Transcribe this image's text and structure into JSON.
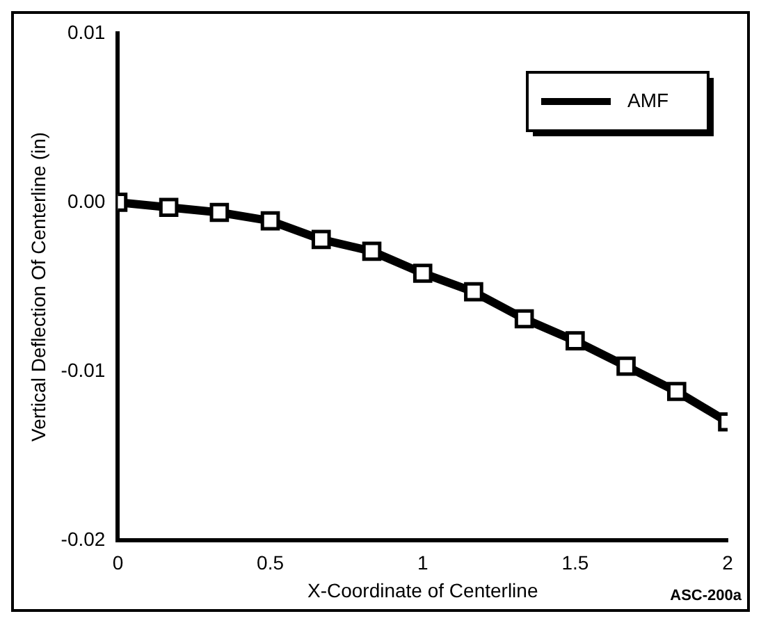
{
  "chart_data": {
    "type": "line",
    "xlabel": "X-Coordinate of Centerline",
    "ylabel": "Vertical Deflection Of Centerline (in)",
    "annotations": [
      "ASC-200a"
    ],
    "x": [
      0,
      0.167,
      0.333,
      0.5,
      0.667,
      0.833,
      1,
      1.167,
      1.333,
      1.5,
      1.667,
      1.833,
      2
    ],
    "series": [
      {
        "name": "AMF",
        "type": "line",
        "marker": "none",
        "line_style": "solid",
        "color": "#000000",
        "values": [
          0,
          -0.0003,
          -0.0006,
          -0.0011,
          -0.0022,
          -0.0029,
          -0.0042,
          -0.0053,
          -0.0069,
          -0.0082,
          -0.0097,
          -0.0112,
          -0.013
        ]
      },
      {
        "type": "scatter",
        "marker": "square",
        "color": "#000000",
        "values": [
          0,
          -0.0003,
          -0.0006,
          -0.0011,
          -0.0022,
          -0.0029,
          -0.0042,
          -0.0053,
          -0.0069,
          -0.0082,
          -0.0097,
          -0.0112,
          -0.013
        ]
      }
    ],
    "xlim": [
      0,
      2
    ],
    "xticks": [
      0,
      0.5,
      1,
      1.5,
      2
    ],
    "ylim": [
      -0.02,
      0.01
    ],
    "yticks": [
      {
        "value": -0.02,
        "label": "-0.02"
      },
      -0.01,
      {
        "value": 0,
        "label": "0.00"
      },
      0.01
    ],
    "grid": false,
    "legend": "top right"
  }
}
